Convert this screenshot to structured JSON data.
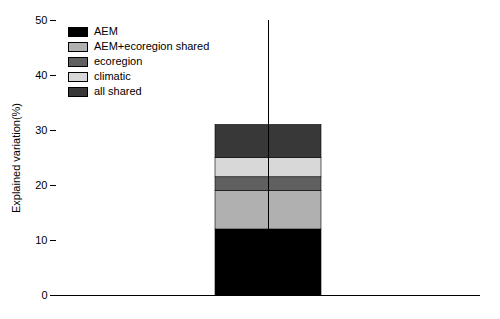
{
  "chart_data": {
    "type": "bar",
    "stacked": true,
    "categories": [
      null
    ],
    "series": [
      {
        "name": "AEM",
        "color": "#000000",
        "values": [
          12.0
        ]
      },
      {
        "name": "AEM+ecoregion shared",
        "color": "#b0b0b0",
        "values": [
          7.0
        ]
      },
      {
        "name": "ecoregion",
        "color": "#606060",
        "values": [
          2.5
        ]
      },
      {
        "name": "climatic",
        "color": "#d8d8d8",
        "values": [
          3.5
        ]
      },
      {
        "name": "all shared",
        "color": "#383838",
        "values": [
          6.0
        ]
      }
    ],
    "ylabel": "Explained variation(%)",
    "ylim": [
      0,
      50
    ],
    "yticks": [
      0,
      10,
      20,
      30,
      40,
      50
    ],
    "legend": "upper left",
    "tick_labels": "y"
  }
}
